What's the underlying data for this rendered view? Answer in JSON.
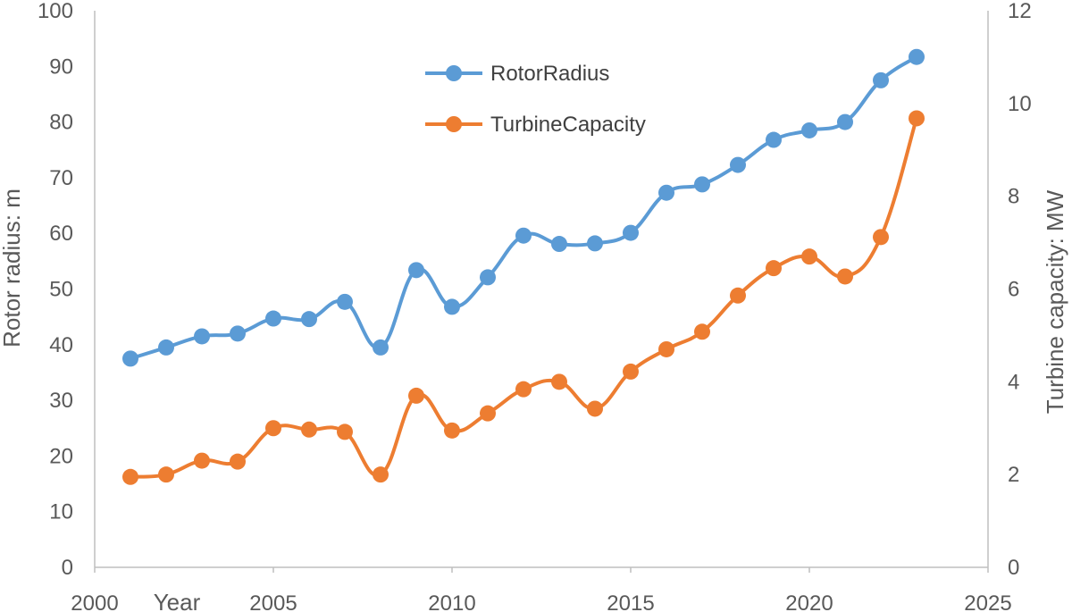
{
  "chart_data": {
    "type": "line",
    "title": "",
    "xlabel": "Year",
    "ylabel": "Rotor radius: m",
    "y2label": "Turbine capacity: MW",
    "xlim": [
      2000,
      2025
    ],
    "ylim": [
      0,
      100
    ],
    "y2lim": [
      0,
      12
    ],
    "x_ticks": [
      2000,
      2005,
      2010,
      2015,
      2020,
      2025
    ],
    "y_ticks": [
      0,
      10,
      20,
      30,
      40,
      50,
      60,
      70,
      80,
      90,
      100
    ],
    "y2_ticks": [
      0,
      2,
      4,
      6,
      8,
      10,
      12
    ],
    "grid": false,
    "legend_position": "top-center",
    "x": [
      2001,
      2002,
      2003,
      2004,
      2005,
      2006,
      2007,
      2008,
      2009,
      2010,
      2011,
      2012,
      2013,
      2014,
      2015,
      2016,
      2017,
      2018,
      2019,
      2020,
      2021,
      2022,
      2023
    ],
    "series": [
      {
        "name": "RotorRadius",
        "axis": "left",
        "color": "#5b9bd5",
        "values": [
          37.5,
          39.5,
          41.5,
          42,
          44.7,
          44.6,
          47.7,
          39.5,
          53.4,
          46.8,
          52.1,
          59.6,
          58.1,
          58.2,
          60.1,
          67.3,
          68.8,
          72.3,
          76.8,
          78.5,
          80,
          87.5,
          91.7
        ]
      },
      {
        "name": "TurbineCapacity",
        "axis": "right",
        "color": "#ed7d31",
        "values": [
          1.95,
          2.0,
          2.3,
          2.28,
          3.0,
          2.97,
          2.92,
          2.0,
          3.7,
          2.95,
          3.32,
          3.84,
          4.0,
          3.42,
          4.22,
          4.7,
          5.08,
          5.86,
          6.45,
          6.7,
          6.27,
          7.12,
          9.68
        ]
      }
    ]
  }
}
